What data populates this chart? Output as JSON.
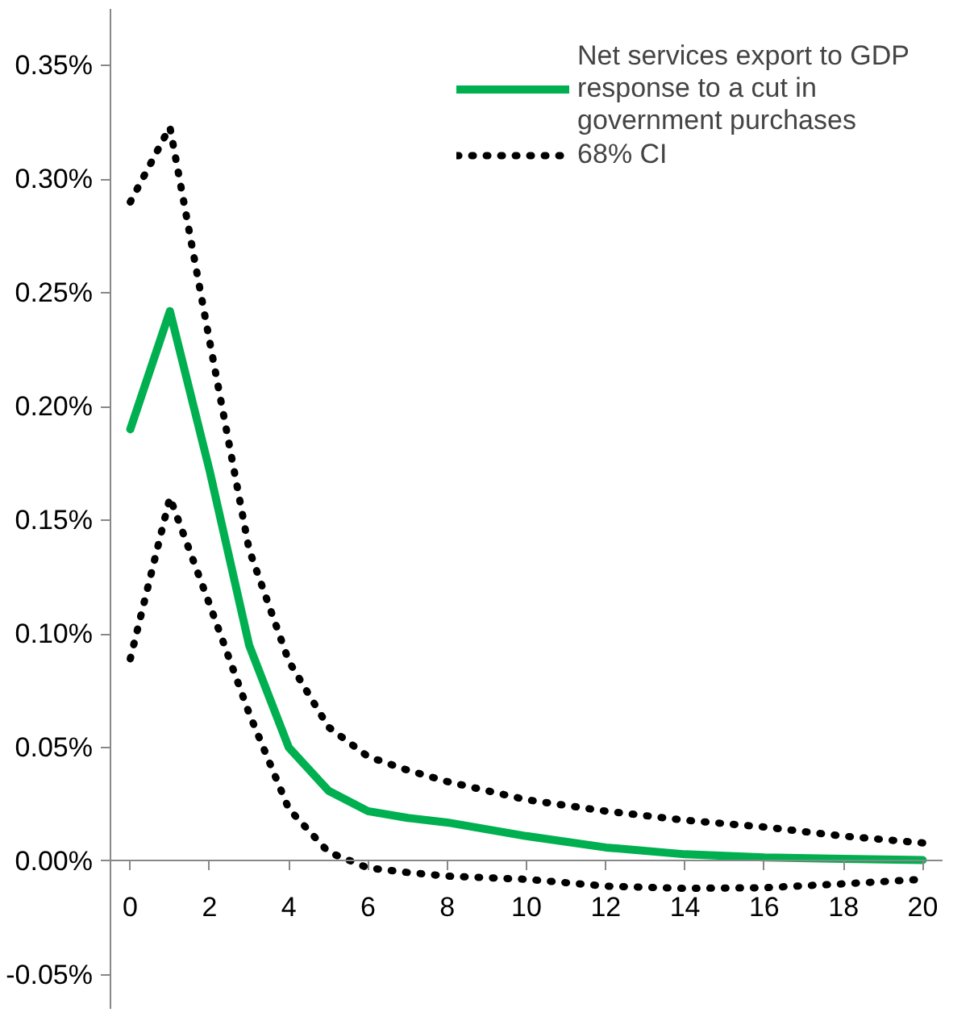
{
  "chart_data": {
    "type": "line",
    "x": [
      0,
      1,
      2,
      3,
      4,
      5,
      6,
      7,
      8,
      10,
      12,
      14,
      16,
      18,
      20
    ],
    "series": [
      {
        "name": "Net services export to GDP response to a cut in government purchases",
        "color": "#00b050",
        "line_style": "solid",
        "values": [
          0.19,
          0.242,
          0.172,
          0.095,
          0.05,
          0.031,
          0.022,
          0.019,
          0.017,
          0.011,
          0.006,
          0.003,
          0.0016,
          0.001,
          0.0005
        ]
      },
      {
        "name": "68% CI",
        "color": "#000000",
        "line_style": "dotted",
        "values": [
          0.29,
          0.323,
          0.229,
          0.137,
          0.088,
          0.059,
          0.046,
          0.04,
          0.035,
          0.027,
          0.022,
          0.018,
          0.015,
          0.011,
          0.008
        ]
      },
      {
        "color": "#000000",
        "line_style": "dotted",
        "values": [
          0.089,
          0.16,
          0.113,
          0.065,
          0.023,
          0.004,
          -0.003,
          -0.005,
          -0.0066,
          -0.008,
          -0.011,
          -0.012,
          -0.0117,
          -0.01,
          -0.008
        ]
      }
    ],
    "xlim": [
      -0.5,
      20.5
    ],
    "ylim": [
      -0.065,
      0.375
    ],
    "xticks": [
      0,
      2,
      4,
      6,
      8,
      10,
      12,
      14,
      16,
      18,
      20
    ],
    "yticks": [
      {
        "value": -0.05,
        "label": "-0.05%"
      },
      {
        "value": 0,
        "label": "0.00%"
      },
      {
        "value": 0.05,
        "label": "0.05%"
      },
      {
        "value": 0.1,
        "label": "0.10%"
      },
      {
        "value": 0.15,
        "label": "0.15%"
      },
      {
        "value": 0.2,
        "label": "0.20%"
      },
      {
        "value": 0.25,
        "label": "0.25%"
      },
      {
        "value": 0.3,
        "label": "0.30%"
      },
      {
        "value": 0.35,
        "label": "0.35%"
      }
    ],
    "grid": false,
    "legend": "top right",
    "marker": "none"
  }
}
